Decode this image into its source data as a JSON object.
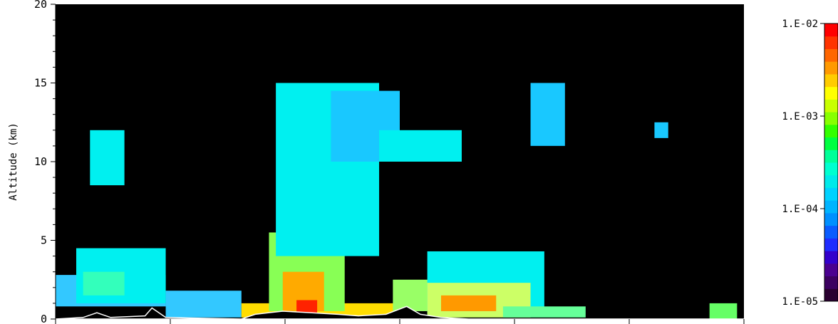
{
  "chart_data": {
    "type": "heatmap",
    "ylabel": "Altitude (km)",
    "xlabel": "",
    "ylim": [
      0,
      20
    ],
    "y_ticks": [
      0,
      5,
      10,
      15,
      20
    ],
    "y_tick_labels": [
      "0",
      "5",
      "10",
      "15",
      "20"
    ],
    "x_tick_count": 7,
    "background_color": "#000000",
    "colorbar": {
      "scale": "log",
      "range": [
        1e-05,
        0.01
      ],
      "tick_values": [
        0.01,
        0.001,
        0.0001,
        1e-05
      ],
      "tick_labels": [
        "1.E-02",
        "1.E-03",
        "1.E-04",
        "1.E-05"
      ],
      "colors_bottom_to_top": [
        "#2a0030",
        "#3c0060",
        "#4b0090",
        "#3300cc",
        "#1f2cff",
        "#0a5cff",
        "#0090ff",
        "#00b4ff",
        "#00d2ff",
        "#00eaea",
        "#00ffd0",
        "#00ff99",
        "#00ff40",
        "#33ff00",
        "#88ff00",
        "#c8ff00",
        "#ffff00",
        "#ffcc00",
        "#ff9900",
        "#ff6600",
        "#ff3300",
        "#ff0000"
      ]
    },
    "regions": [
      {
        "x": [
          0,
          0.16
        ],
        "y": [
          0.8,
          2.8
        ],
        "level": "1.E-04",
        "color": "#33c8ff"
      },
      {
        "x": [
          0.03,
          0.16
        ],
        "y": [
          1.0,
          4.5
        ],
        "level": "2.E-04",
        "color": "#00f0f0"
      },
      {
        "x": [
          0.04,
          0.1
        ],
        "y": [
          1.5,
          3.0
        ],
        "level": "3.E-04",
        "color": "#33ffbb"
      },
      {
        "x": [
          0.16,
          0.27
        ],
        "y": [
          0.1,
          1.8
        ],
        "level": "1.E-04",
        "color": "#33c8ff"
      },
      {
        "x": [
          0.05,
          0.1
        ],
        "y": [
          8.5,
          12.0
        ],
        "level": "2.E-04",
        "color": "#00f0f0"
      },
      {
        "x": [
          0.27,
          0.52
        ],
        "y": [
          0.1,
          1.0
        ],
        "level": "2.E-03",
        "color": "#ffdd00"
      },
      {
        "x": [
          0.31,
          0.42
        ],
        "y": [
          0.5,
          5.5
        ],
        "level": "1.E-03",
        "color": "#88ff55"
      },
      {
        "x": [
          0.33,
          0.39
        ],
        "y": [
          0.5,
          3.0
        ],
        "level": "3.E-03",
        "color": "#ffaa00"
      },
      {
        "x": [
          0.35,
          0.38
        ],
        "y": [
          0.3,
          1.2
        ],
        "level": "8.E-03",
        "color": "#ff2200"
      },
      {
        "x": [
          0.32,
          0.47
        ],
        "y": [
          4.0,
          15.0
        ],
        "level": "2.E-04",
        "color": "#00f0f0"
      },
      {
        "x": [
          0.4,
          0.5
        ],
        "y": [
          10.0,
          14.5
        ],
        "level": "1.E-04",
        "color": "#19c8ff"
      },
      {
        "x": [
          0.47,
          0.59
        ],
        "y": [
          10.0,
          12.0
        ],
        "level": "2.E-04",
        "color": "#00f0f0"
      },
      {
        "x": [
          0.49,
          0.61
        ],
        "y": [
          0.5,
          2.5
        ],
        "level": "6.E-04",
        "color": "#99ff66"
      },
      {
        "x": [
          0.54,
          0.71
        ],
        "y": [
          0.2,
          4.3
        ],
        "level": "2.E-04",
        "color": "#00f0f0"
      },
      {
        "x": [
          0.54,
          0.69
        ],
        "y": [
          0.1,
          2.3
        ],
        "level": "1.E-03",
        "color": "#ccff66"
      },
      {
        "x": [
          0.56,
          0.64
        ],
        "y": [
          0.5,
          1.5
        ],
        "level": "3.E-03",
        "color": "#ff9900"
      },
      {
        "x": [
          0.65,
          0.77
        ],
        "y": [
          0.1,
          0.8
        ],
        "level": "1.E-03",
        "color": "#66ff99"
      },
      {
        "x": [
          0.69,
          0.74
        ],
        "y": [
          11.0,
          15.0
        ],
        "level": "1.E-04",
        "color": "#19c8ff"
      },
      {
        "x": [
          0.87,
          0.89
        ],
        "y": [
          11.5,
          12.5
        ],
        "level": "1.E-04",
        "color": "#19c8ff"
      },
      {
        "x": [
          0.95,
          0.99
        ],
        "y": [
          0.0,
          1.0
        ],
        "level": "1.E-03",
        "color": "#66ff66"
      }
    ],
    "grid": false
  }
}
